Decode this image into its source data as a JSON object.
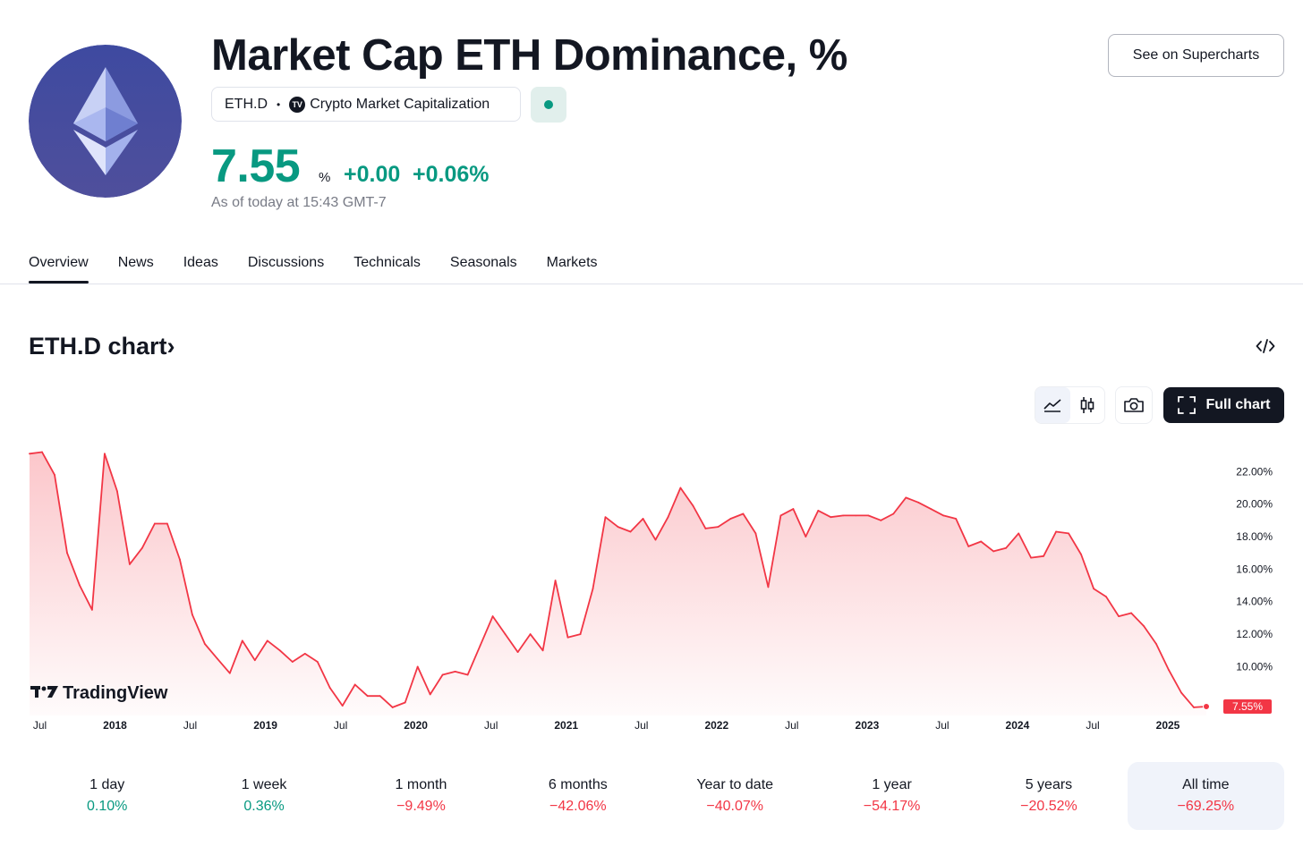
{
  "header": {
    "title": "Market Cap ETH Dominance, %",
    "symbol": "ETH.D",
    "exchange": "Crypto Market Capitalization",
    "exchange_icon_text": "TV",
    "price": "7.55",
    "price_unit": "%",
    "change_abs": "+0.00",
    "change_pct": "+0.06%",
    "as_of": "As of today at 15:43 GMT-7",
    "supercharts_label": "See on Supercharts",
    "status_color": "#089981",
    "logo_icon": "ethereum-logo-icon"
  },
  "tabs": [
    {
      "label": "Overview",
      "active": true
    },
    {
      "label": "News"
    },
    {
      "label": "Ideas"
    },
    {
      "label": "Discussions"
    },
    {
      "label": "Technicals"
    },
    {
      "label": "Seasonals"
    },
    {
      "label": "Markets"
    }
  ],
  "chart_section": {
    "heading": "ETH.D chart",
    "heading_suffix": "›",
    "full_chart_label": "Full chart",
    "watermark": "TradingView"
  },
  "chart_data": {
    "type": "area",
    "title": "",
    "xlabel": "",
    "ylabel": "",
    "x_tick_labels": [
      {
        "label": "Jul",
        "year": false
      },
      {
        "label": "2018",
        "year": true
      },
      {
        "label": "Jul",
        "year": false
      },
      {
        "label": "2019",
        "year": true
      },
      {
        "label": "Jul",
        "year": false
      },
      {
        "label": "2020",
        "year": true
      },
      {
        "label": "Jul",
        "year": false
      },
      {
        "label": "2021",
        "year": true
      },
      {
        "label": "Jul",
        "year": false
      },
      {
        "label": "2022",
        "year": true
      },
      {
        "label": "Jul",
        "year": false
      },
      {
        "label": "2023",
        "year": true
      },
      {
        "label": "Jul",
        "year": false
      },
      {
        "label": "2024",
        "year": true
      },
      {
        "label": "Jul",
        "year": false
      },
      {
        "label": "2025",
        "year": true
      }
    ],
    "y_ticks": [
      "10.00%",
      "12.00%",
      "14.00%",
      "16.00%",
      "18.00%",
      "20.00%",
      "22.00%"
    ],
    "last_value_label": "7.55%",
    "ylim": [
      7.0,
      23.5
    ],
    "x_start": "2017-06",
    "x_end": "2025-03",
    "line_color": "#f23645",
    "series": [
      {
        "values": [
          23.1,
          23.2,
          21.8,
          17.0,
          15.0,
          13.5,
          23.1,
          20.8,
          16.3,
          17.3,
          18.8,
          18.8,
          16.6,
          13.2,
          11.4,
          10.5,
          9.6,
          11.6,
          10.4,
          11.6,
          11.0,
          10.3,
          10.8,
          10.3,
          8.7,
          7.6,
          8.9,
          8.2,
          8.2,
          7.5,
          7.8,
          10.0,
          8.3,
          9.5,
          9.7,
          9.5,
          11.3,
          13.1,
          12.0,
          10.9,
          12.0,
          11.0,
          15.3,
          11.8,
          12.0,
          14.8,
          19.2,
          18.6,
          18.3,
          19.1,
          17.8,
          19.2,
          21.0,
          19.9,
          18.5,
          18.6,
          19.1,
          19.4,
          18.2,
          14.9,
          19.3,
          19.7,
          18.0,
          19.6,
          19.2,
          19.3,
          19.3,
          19.3,
          19.0,
          19.4,
          20.4,
          20.1,
          19.7,
          19.3,
          19.1,
          17.4,
          17.7,
          17.1,
          17.3,
          18.2,
          16.7,
          16.8,
          18.3,
          18.2,
          16.9,
          14.8,
          14.3,
          13.1,
          13.3,
          12.5,
          11.4,
          9.8,
          8.4,
          7.5,
          7.55
        ]
      }
    ],
    "grid": false
  },
  "periods": [
    {
      "label": "1 day",
      "value": "0.10%",
      "sign": "pos"
    },
    {
      "label": "1 week",
      "value": "0.36%",
      "sign": "pos"
    },
    {
      "label": "1 month",
      "value": "−9.49%",
      "sign": "neg"
    },
    {
      "label": "6 months",
      "value": "−42.06%",
      "sign": "neg"
    },
    {
      "label": "Year to date",
      "value": "−40.07%",
      "sign": "neg"
    },
    {
      "label": "1 year",
      "value": "−54.17%",
      "sign": "neg"
    },
    {
      "label": "5 years",
      "value": "−20.52%",
      "sign": "neg"
    },
    {
      "label": "All time",
      "value": "−69.25%",
      "sign": "neg",
      "active": true
    }
  ]
}
